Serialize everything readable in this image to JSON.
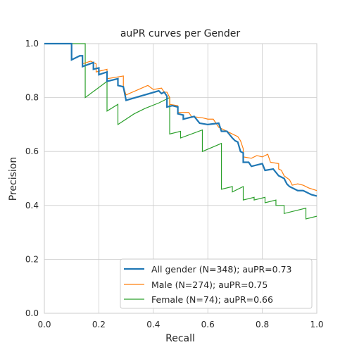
{
  "chart_data": {
    "type": "line",
    "title": "auPR curves per Gender",
    "xlabel": "Recall",
    "ylabel": "Precision",
    "xlim": [
      0.0,
      1.0
    ],
    "ylim": [
      0.0,
      1.0
    ],
    "xticks": [
      "0.0",
      "0.2",
      "0.4",
      "0.6",
      "0.8",
      "1.0"
    ],
    "yticks": [
      "0.0",
      "0.2",
      "0.4",
      "0.6",
      "0.8",
      "1.0"
    ],
    "grid": true,
    "legend": "lower-right",
    "series": [
      {
        "name": "All gender (N=348); auPR=0.73",
        "color": "#1f77b4",
        "points": [
          [
            0,
            1.0
          ],
          [
            0.1,
            1.0
          ],
          [
            0.1,
            0.94
          ],
          [
            0.13,
            0.955
          ],
          [
            0.14,
            0.955
          ],
          [
            0.14,
            0.915
          ],
          [
            0.18,
            0.93
          ],
          [
            0.18,
            0.905
          ],
          [
            0.2,
            0.91
          ],
          [
            0.2,
            0.885
          ],
          [
            0.23,
            0.895
          ],
          [
            0.23,
            0.86
          ],
          [
            0.27,
            0.87
          ],
          [
            0.27,
            0.845
          ],
          [
            0.29,
            0.84
          ],
          [
            0.3,
            0.79
          ],
          [
            0.42,
            0.825
          ],
          [
            0.43,
            0.815
          ],
          [
            0.44,
            0.82
          ],
          [
            0.45,
            0.805
          ],
          [
            0.45,
            0.765
          ],
          [
            0.47,
            0.77
          ],
          [
            0.49,
            0.765
          ],
          [
            0.49,
            0.74
          ],
          [
            0.51,
            0.735
          ],
          [
            0.51,
            0.72
          ],
          [
            0.55,
            0.73
          ],
          [
            0.57,
            0.705
          ],
          [
            0.6,
            0.7
          ],
          [
            0.64,
            0.705
          ],
          [
            0.65,
            0.675
          ],
          [
            0.67,
            0.675
          ],
          [
            0.69,
            0.65
          ],
          [
            0.7,
            0.64
          ],
          [
            0.71,
            0.635
          ],
          [
            0.72,
            0.6
          ],
          [
            0.73,
            0.595
          ],
          [
            0.73,
            0.56
          ],
          [
            0.75,
            0.56
          ],
          [
            0.76,
            0.545
          ],
          [
            0.8,
            0.555
          ],
          [
            0.81,
            0.53
          ],
          [
            0.84,
            0.535
          ],
          [
            0.86,
            0.51
          ],
          [
            0.88,
            0.5
          ],
          [
            0.89,
            0.48
          ],
          [
            0.9,
            0.47
          ],
          [
            0.91,
            0.465
          ],
          [
            0.93,
            0.455
          ],
          [
            0.95,
            0.455
          ],
          [
            0.96,
            0.45
          ],
          [
            0.98,
            0.44
          ],
          [
            1.0,
            0.435
          ]
        ]
      },
      {
        "name": "Male (N=274); auPR=0.75",
        "color": "#ff7f0e",
        "points": [
          [
            0,
            1.0
          ],
          [
            0.1,
            1.0
          ],
          [
            0.1,
            0.94
          ],
          [
            0.13,
            0.955
          ],
          [
            0.14,
            0.955
          ],
          [
            0.14,
            0.925
          ],
          [
            0.17,
            0.935
          ],
          [
            0.19,
            0.925
          ],
          [
            0.19,
            0.895
          ],
          [
            0.23,
            0.905
          ],
          [
            0.23,
            0.87
          ],
          [
            0.29,
            0.88
          ],
          [
            0.29,
            0.84
          ],
          [
            0.3,
            0.81
          ],
          [
            0.38,
            0.845
          ],
          [
            0.4,
            0.83
          ],
          [
            0.43,
            0.835
          ],
          [
            0.44,
            0.82
          ],
          [
            0.45,
            0.82
          ],
          [
            0.46,
            0.8
          ],
          [
            0.46,
            0.775
          ],
          [
            0.49,
            0.77
          ],
          [
            0.49,
            0.745
          ],
          [
            0.53,
            0.745
          ],
          [
            0.54,
            0.73
          ],
          [
            0.58,
            0.725
          ],
          [
            0.6,
            0.72
          ],
          [
            0.62,
            0.72
          ],
          [
            0.64,
            0.69
          ],
          [
            0.65,
            0.685
          ],
          [
            0.66,
            0.68
          ],
          [
            0.69,
            0.665
          ],
          [
            0.71,
            0.655
          ],
          [
            0.72,
            0.64
          ],
          [
            0.73,
            0.61
          ],
          [
            0.73,
            0.58
          ],
          [
            0.76,
            0.575
          ],
          [
            0.78,
            0.585
          ],
          [
            0.8,
            0.58
          ],
          [
            0.82,
            0.59
          ],
          [
            0.83,
            0.56
          ],
          [
            0.86,
            0.555
          ],
          [
            0.86,
            0.535
          ],
          [
            0.87,
            0.53
          ],
          [
            0.88,
            0.51
          ],
          [
            0.9,
            0.495
          ],
          [
            0.91,
            0.475
          ],
          [
            0.93,
            0.48
          ],
          [
            0.95,
            0.475
          ],
          [
            0.97,
            0.465
          ],
          [
            1.0,
            0.455
          ]
        ]
      },
      {
        "name": "Female (N=74); auPR=0.66",
        "color": "#2ca02c",
        "points": [
          [
            0,
            1.0
          ],
          [
            0.15,
            1.0
          ],
          [
            0.15,
            0.8
          ],
          [
            0.19,
            0.83
          ],
          [
            0.23,
            0.86
          ],
          [
            0.23,
            0.75
          ],
          [
            0.27,
            0.775
          ],
          [
            0.27,
            0.7
          ],
          [
            0.33,
            0.74
          ],
          [
            0.37,
            0.76
          ],
          [
            0.42,
            0.78
          ],
          [
            0.46,
            0.8
          ],
          [
            0.46,
            0.665
          ],
          [
            0.5,
            0.675
          ],
          [
            0.5,
            0.65
          ],
          [
            0.58,
            0.68
          ],
          [
            0.58,
            0.6
          ],
          [
            0.65,
            0.63
          ],
          [
            0.65,
            0.46
          ],
          [
            0.69,
            0.47
          ],
          [
            0.69,
            0.45
          ],
          [
            0.73,
            0.47
          ],
          [
            0.73,
            0.42
          ],
          [
            0.77,
            0.43
          ],
          [
            0.77,
            0.42
          ],
          [
            0.81,
            0.43
          ],
          [
            0.81,
            0.41
          ],
          [
            0.85,
            0.42
          ],
          [
            0.85,
            0.4
          ],
          [
            0.88,
            0.4
          ],
          [
            0.88,
            0.37
          ],
          [
            0.96,
            0.39
          ],
          [
            0.96,
            0.35
          ],
          [
            1.0,
            0.36
          ]
        ]
      }
    ]
  }
}
